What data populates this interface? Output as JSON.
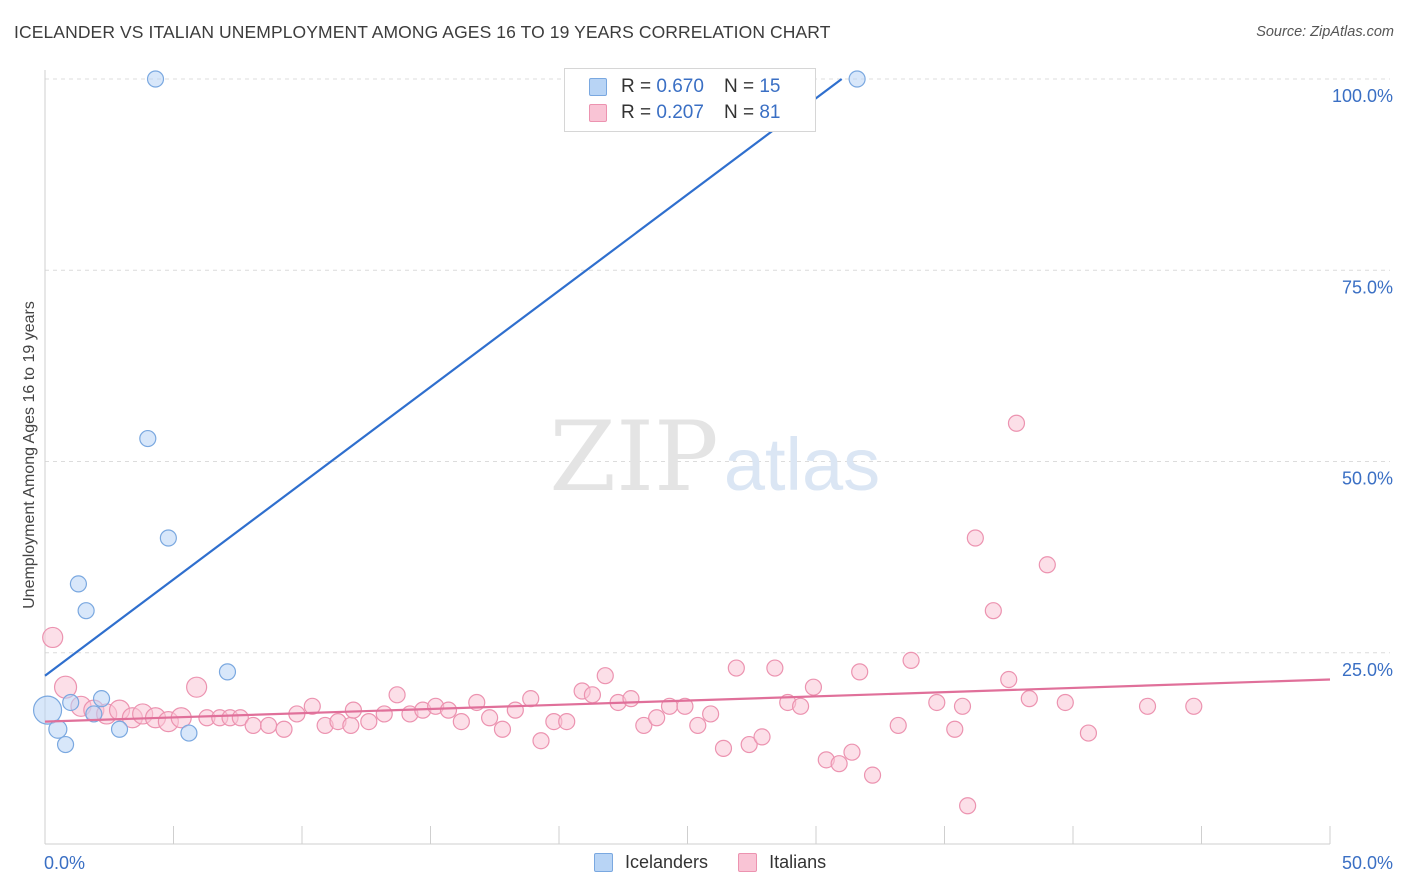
{
  "title": "ICELANDER VS ITALIAN UNEMPLOYMENT AMONG AGES 16 TO 19 YEARS CORRELATION CHART",
  "source": "Source: ZipAtlas.com",
  "watermark": {
    "zip": "ZIP",
    "atlas": "atlas"
  },
  "legend": {
    "rows": [
      {
        "r_label": "R =",
        "r_value": "0.670",
        "n_label": "N =",
        "n_value": "15"
      },
      {
        "r_label": "R =",
        "r_value": "0.207",
        "n_label": "N =",
        "n_value": "81"
      }
    ]
  },
  "bottom_legend": [
    "Icelanders",
    "Italians"
  ],
  "chart_data": {
    "type": "scatter",
    "xlabel": "",
    "ylabel": "Unemployment Among Ages 16 to 19 years",
    "xlim": [
      0,
      50
    ],
    "ylim": [
      0,
      103
    ],
    "x_tick_labels": [
      "0.0%",
      "50.0%"
    ],
    "y_tick_labels": [
      "25.0%",
      "50.0%",
      "75.0%",
      "100.0%"
    ],
    "y_ticks": [
      25,
      50,
      75,
      100
    ],
    "x_minor_ticks": [
      5,
      10,
      15,
      20,
      25,
      30,
      35,
      40,
      45
    ],
    "grid": true,
    "colors": {
      "icelanders_fill": "#b8d4f5",
      "icelanders_stroke": "#7aa8e0",
      "icelanders_line": "#2f6fce",
      "italians_fill": "#f9c4d5",
      "italians_stroke": "#ec93b0",
      "italians_line": "#e0709a",
      "tick_label": "#3a6fc4",
      "grid": "#dcdcdc"
    },
    "series": [
      {
        "name": "Icelanders",
        "points": [
          {
            "x": 0.1,
            "y": 17.5,
            "s": 14
          },
          {
            "x": 0.5,
            "y": 15.0,
            "s": 9
          },
          {
            "x": 0.8,
            "y": 13.0,
            "s": 8
          },
          {
            "x": 1.0,
            "y": 18.5,
            "s": 8
          },
          {
            "x": 1.3,
            "y": 34.0,
            "s": 8
          },
          {
            "x": 1.6,
            "y": 30.5,
            "s": 8
          },
          {
            "x": 1.9,
            "y": 17.0,
            "s": 8
          },
          {
            "x": 2.2,
            "y": 19.0,
            "s": 8
          },
          {
            "x": 2.9,
            "y": 15.0,
            "s": 8
          },
          {
            "x": 4.0,
            "y": 53.0,
            "s": 8
          },
          {
            "x": 4.3,
            "y": 100.0,
            "s": 8
          },
          {
            "x": 4.8,
            "y": 40.0,
            "s": 8
          },
          {
            "x": 5.6,
            "y": 14.5,
            "s": 8
          },
          {
            "x": 7.1,
            "y": 22.5,
            "s": 8
          },
          {
            "x": 31.6,
            "y": 100.0,
            "s": 8
          }
        ],
        "trend": {
          "x": [
            0,
            31.0
          ],
          "y": [
            22.0,
            100.0
          ]
        }
      },
      {
        "name": "Italians",
        "points": [
          {
            "x": 0.3,
            "y": 27.0,
            "s": 10
          },
          {
            "x": 0.8,
            "y": 20.5,
            "s": 11
          },
          {
            "x": 1.4,
            "y": 18.0,
            "s": 10
          },
          {
            "x": 1.9,
            "y": 17.5,
            "s": 10
          },
          {
            "x": 2.4,
            "y": 17.0,
            "s": 10
          },
          {
            "x": 2.9,
            "y": 17.5,
            "s": 10
          },
          {
            "x": 3.4,
            "y": 16.5,
            "s": 10
          },
          {
            "x": 3.8,
            "y": 17.0,
            "s": 10
          },
          {
            "x": 4.3,
            "y": 16.5,
            "s": 10
          },
          {
            "x": 4.8,
            "y": 16.0,
            "s": 10
          },
          {
            "x": 5.3,
            "y": 16.5,
            "s": 10
          },
          {
            "x": 5.9,
            "y": 20.5,
            "s": 10
          },
          {
            "x": 6.3,
            "y": 16.5,
            "s": 8
          },
          {
            "x": 6.8,
            "y": 16.5,
            "s": 8
          },
          {
            "x": 7.2,
            "y": 16.5,
            "s": 8
          },
          {
            "x": 7.6,
            "y": 16.5,
            "s": 8
          },
          {
            "x": 8.1,
            "y": 15.5,
            "s": 8
          },
          {
            "x": 8.7,
            "y": 15.5,
            "s": 8
          },
          {
            "x": 9.3,
            "y": 15.0,
            "s": 8
          },
          {
            "x": 9.8,
            "y": 17.0,
            "s": 8
          },
          {
            "x": 10.4,
            "y": 18.0,
            "s": 8
          },
          {
            "x": 10.9,
            "y": 15.5,
            "s": 8
          },
          {
            "x": 11.4,
            "y": 16.0,
            "s": 8
          },
          {
            "x": 11.9,
            "y": 15.5,
            "s": 8
          },
          {
            "x": 12.0,
            "y": 17.5,
            "s": 8
          },
          {
            "x": 12.6,
            "y": 16.0,
            "s": 8
          },
          {
            "x": 13.2,
            "y": 17.0,
            "s": 8
          },
          {
            "x": 13.7,
            "y": 19.5,
            "s": 8
          },
          {
            "x": 14.2,
            "y": 17.0,
            "s": 8
          },
          {
            "x": 14.7,
            "y": 17.5,
            "s": 8
          },
          {
            "x": 15.2,
            "y": 18.0,
            "s": 8
          },
          {
            "x": 15.7,
            "y": 17.5,
            "s": 8
          },
          {
            "x": 16.2,
            "y": 16.0,
            "s": 8
          },
          {
            "x": 16.8,
            "y": 18.5,
            "s": 8
          },
          {
            "x": 17.3,
            "y": 16.5,
            "s": 8
          },
          {
            "x": 17.8,
            "y": 15.0,
            "s": 8
          },
          {
            "x": 18.3,
            "y": 17.5,
            "s": 8
          },
          {
            "x": 18.9,
            "y": 19.0,
            "s": 8
          },
          {
            "x": 19.3,
            "y": 13.5,
            "s": 8
          },
          {
            "x": 19.8,
            "y": 16.0,
            "s": 8
          },
          {
            "x": 20.3,
            "y": 16.0,
            "s": 8
          },
          {
            "x": 20.9,
            "y": 20.0,
            "s": 8
          },
          {
            "x": 21.3,
            "y": 19.5,
            "s": 8
          },
          {
            "x": 21.8,
            "y": 22.0,
            "s": 8
          },
          {
            "x": 22.3,
            "y": 18.5,
            "s": 8
          },
          {
            "x": 22.8,
            "y": 19.0,
            "s": 8
          },
          {
            "x": 23.3,
            "y": 15.5,
            "s": 8
          },
          {
            "x": 23.8,
            "y": 16.5,
            "s": 8
          },
          {
            "x": 24.3,
            "y": 18.0,
            "s": 8
          },
          {
            "x": 24.9,
            "y": 18.0,
            "s": 8
          },
          {
            "x": 25.4,
            "y": 15.5,
            "s": 8
          },
          {
            "x": 25.9,
            "y": 17.0,
            "s": 8
          },
          {
            "x": 26.4,
            "y": 12.5,
            "s": 8
          },
          {
            "x": 26.9,
            "y": 23.0,
            "s": 8
          },
          {
            "x": 27.4,
            "y": 13.0,
            "s": 8
          },
          {
            "x": 27.9,
            "y": 14.0,
            "s": 8
          },
          {
            "x": 28.4,
            "y": 23.0,
            "s": 8
          },
          {
            "x": 28.9,
            "y": 18.5,
            "s": 8
          },
          {
            "x": 29.4,
            "y": 18.0,
            "s": 8
          },
          {
            "x": 29.9,
            "y": 20.5,
            "s": 8
          },
          {
            "x": 30.4,
            "y": 11.0,
            "s": 8
          },
          {
            "x": 30.9,
            "y": 10.5,
            "s": 8
          },
          {
            "x": 31.4,
            "y": 12.0,
            "s": 8
          },
          {
            "x": 31.7,
            "y": 22.5,
            "s": 8
          },
          {
            "x": 32.2,
            "y": 9.0,
            "s": 8
          },
          {
            "x": 33.2,
            "y": 15.5,
            "s": 8
          },
          {
            "x": 33.7,
            "y": 24.0,
            "s": 8
          },
          {
            "x": 34.7,
            "y": 18.5,
            "s": 8
          },
          {
            "x": 35.4,
            "y": 15.0,
            "s": 8
          },
          {
            "x": 35.7,
            "y": 18.0,
            "s": 8
          },
          {
            "x": 35.9,
            "y": 5.0,
            "s": 8
          },
          {
            "x": 36.2,
            "y": 40.0,
            "s": 8
          },
          {
            "x": 36.9,
            "y": 30.5,
            "s": 8
          },
          {
            "x": 37.5,
            "y": 21.5,
            "s": 8
          },
          {
            "x": 37.8,
            "y": 55.0,
            "s": 8
          },
          {
            "x": 38.3,
            "y": 19.0,
            "s": 8
          },
          {
            "x": 39.0,
            "y": 36.5,
            "s": 8
          },
          {
            "x": 39.7,
            "y": 18.5,
            "s": 8
          },
          {
            "x": 40.6,
            "y": 14.5,
            "s": 8
          },
          {
            "x": 42.9,
            "y": 18.0,
            "s": 8
          },
          {
            "x": 44.7,
            "y": 18.0,
            "s": 8
          }
        ],
        "trend": {
          "x": [
            0,
            50.0
          ],
          "y": [
            16.0,
            21.5
          ]
        }
      }
    ]
  }
}
